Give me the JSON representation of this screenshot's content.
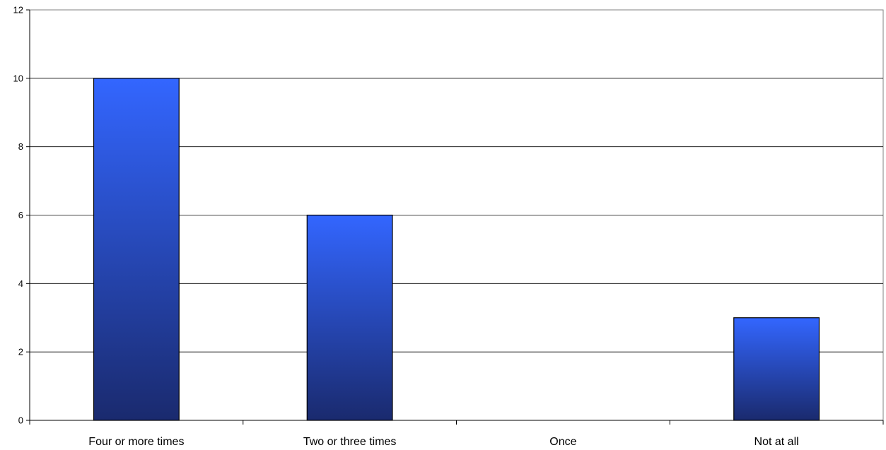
{
  "chart_data": {
    "type": "bar",
    "categories": [
      "Four or more times",
      "Two or three times",
      "Once",
      "Not at all"
    ],
    "values": [
      10,
      6,
      0,
      3
    ],
    "title": "",
    "xlabel": "",
    "ylabel": "",
    "ylim": [
      0,
      12
    ],
    "yticks": [
      0,
      2,
      4,
      6,
      8,
      10,
      12
    ],
    "grid": true,
    "legend": "none",
    "colors": {
      "bar_top": "#3366ff",
      "bar_bottom": "#1a2a6e",
      "bar_stroke": "#000000",
      "gridline": "#000000",
      "axis": "#000000"
    }
  }
}
